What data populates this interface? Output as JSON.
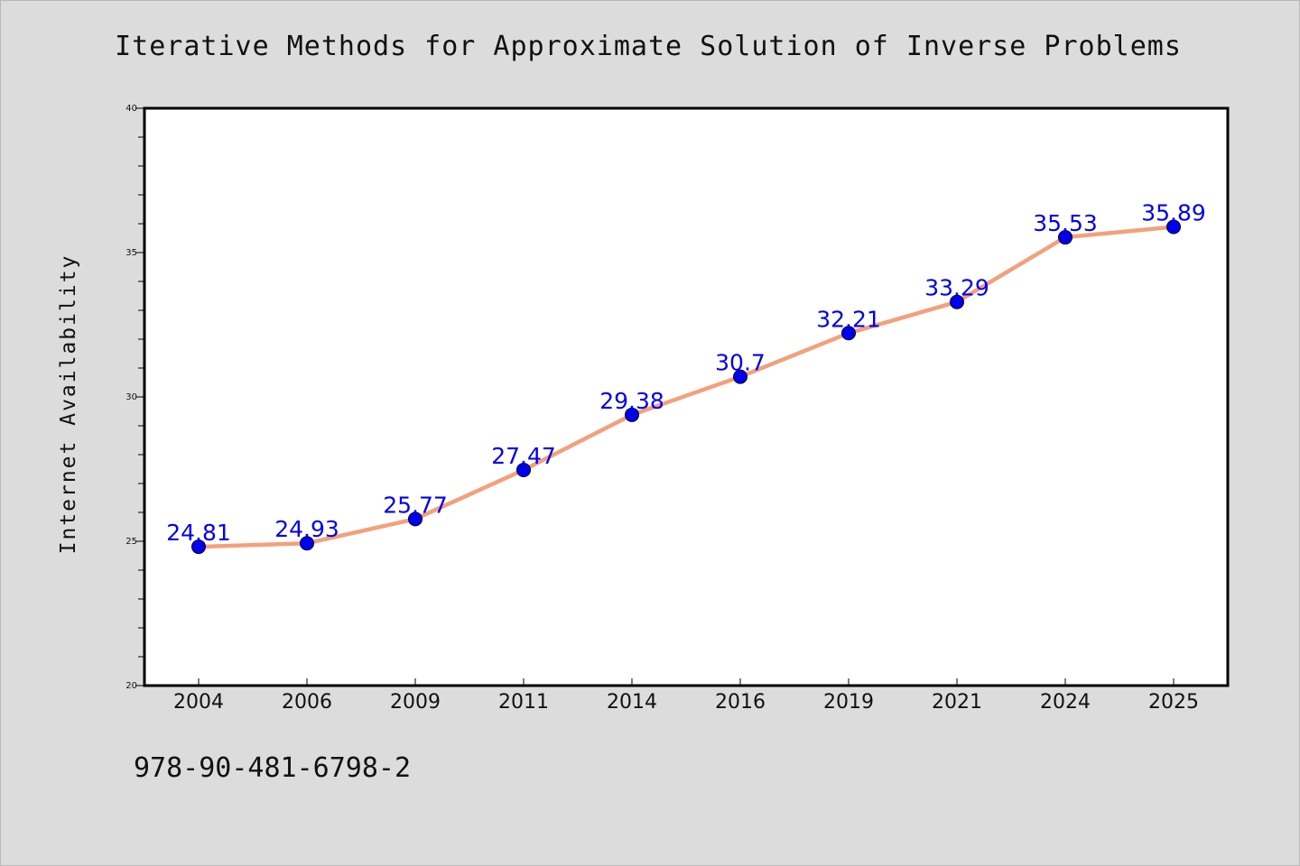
{
  "chart_data": {
    "type": "line",
    "title": "Iterative Methods for Approximate Solution of Inverse Problems",
    "xlabel": "",
    "ylabel": "Internet Availability",
    "categories": [
      "2004",
      "2006",
      "2009",
      "2011",
      "2014",
      "2016",
      "2019",
      "2021",
      "2024",
      "2025"
    ],
    "values": [
      24.81,
      24.93,
      25.77,
      27.47,
      29.38,
      30.7,
      32.21,
      33.29,
      35.53,
      35.89
    ],
    "value_labels": [
      "24.81",
      "24.93",
      "25.77",
      "27.47",
      "29.38",
      "30.7",
      "32.21",
      "33.29",
      "35.53",
      "35.89"
    ],
    "ylim": [
      20,
      40
    ],
    "yticks": [
      20,
      25,
      30,
      35,
      40
    ],
    "grid": false,
    "line_color": "#f4a07c",
    "marker_color": "#0000ee",
    "label_color": "#0000ee",
    "plot_background": "#ffffff",
    "page_background": "#dcdcdc"
  },
  "footer": {
    "identifier": "978-90-481-6798-2"
  }
}
